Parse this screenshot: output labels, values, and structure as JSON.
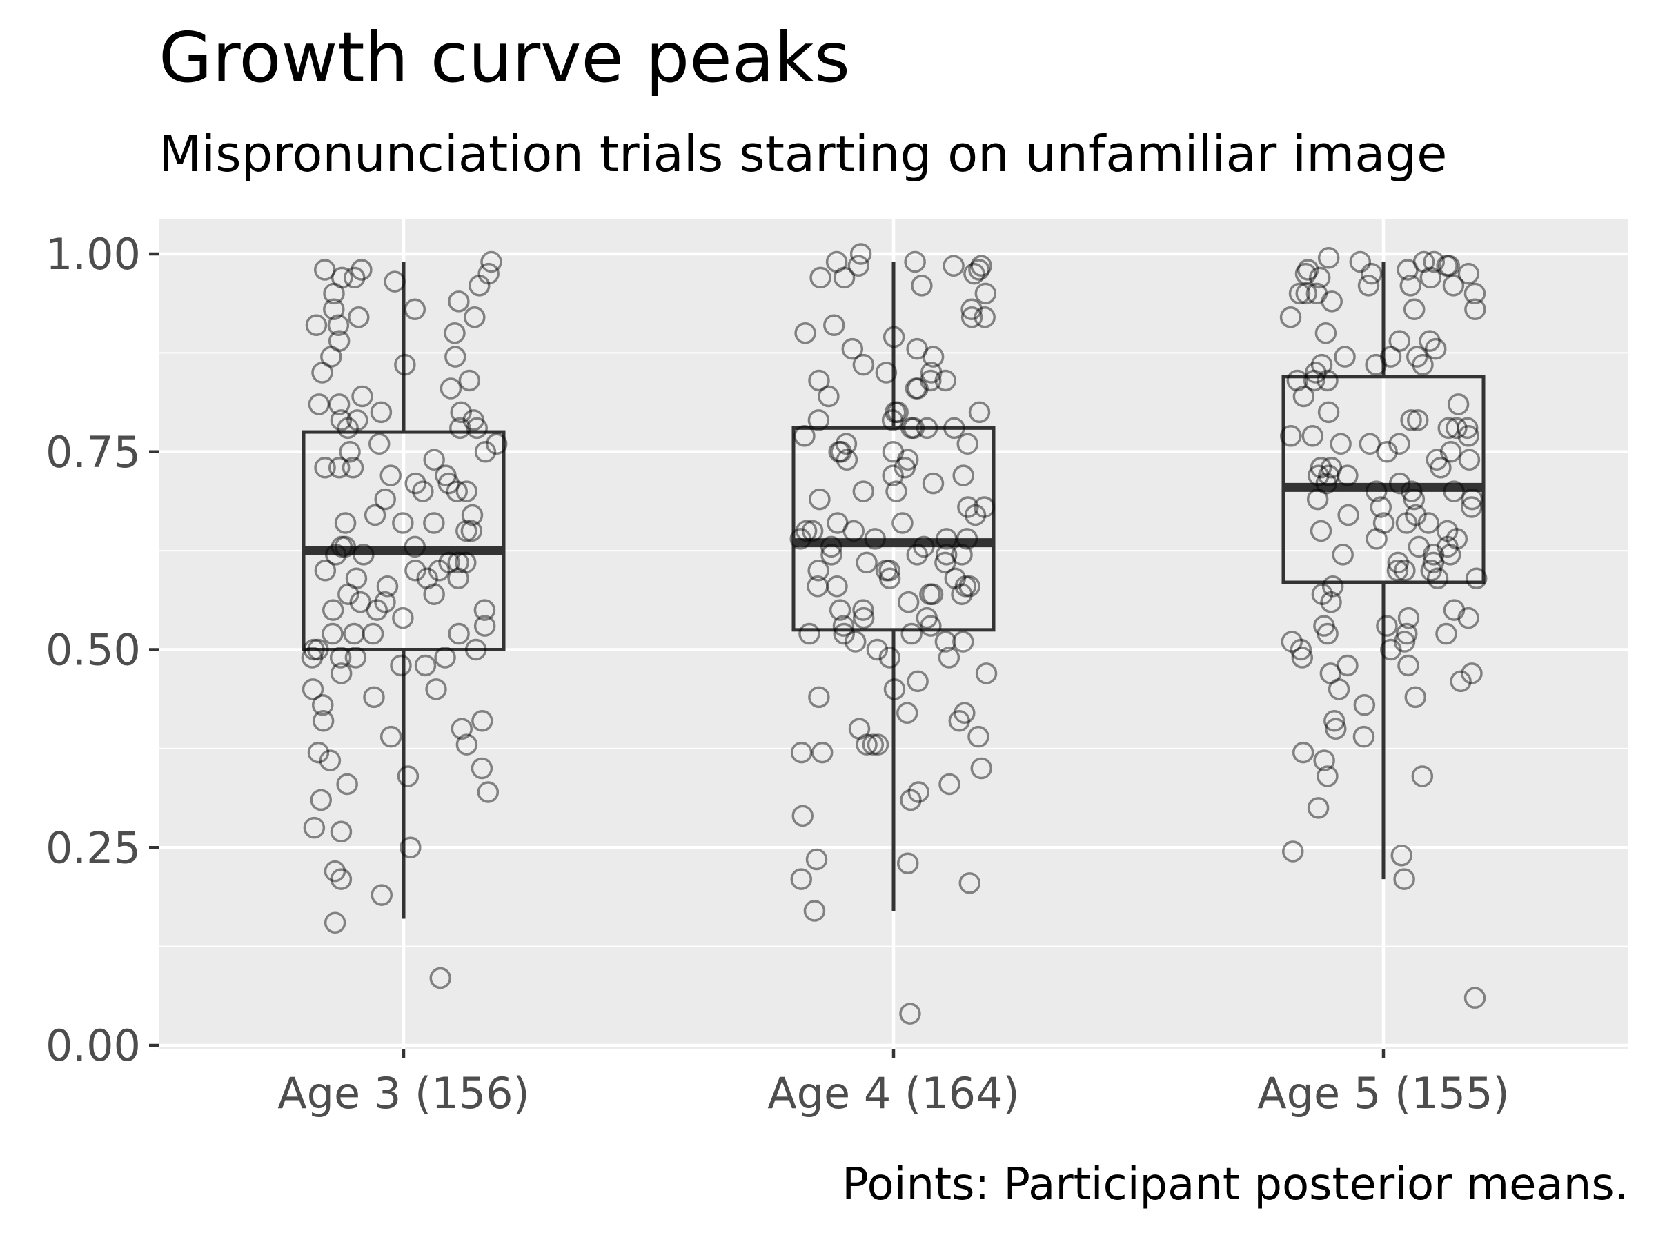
{
  "chart_data": {
    "type": "box",
    "title": "Growth curve peaks",
    "subtitle": "Mispronunciation trials starting on unfamiliar image",
    "caption": "Points: Participant posterior means.",
    "xlabel": "",
    "ylabel": "",
    "ylim": [
      0,
      1
    ],
    "y_ticks": [
      "0.00",
      "0.25",
      "0.50",
      "0.75",
      "1.00"
    ],
    "y_tick_values": [
      0,
      0.25,
      0.5,
      0.75,
      1.0
    ],
    "categories": [
      "Age 3 (156)",
      "Age 4 (164)",
      "Age 5 (155)"
    ],
    "grid": true,
    "panel_color": "#ebebeb",
    "grid_color": "#ffffff",
    "box_color": "#333333",
    "point_color": "#000000",
    "point_opacity": 0.45,
    "boxes": [
      {
        "category": "Age 3 (156)",
        "whisker_low": 0.16,
        "q1": 0.5,
        "median": 0.625,
        "q3": 0.775,
        "whisker_high": 0.99
      },
      {
        "category": "Age 4 (164)",
        "whisker_low": 0.17,
        "q1": 0.525,
        "median": 0.635,
        "q3": 0.78,
        "whisker_high": 0.99
      },
      {
        "category": "Age 5 (155)",
        "whisker_low": 0.21,
        "q1": 0.585,
        "median": 0.705,
        "q3": 0.845,
        "whisker_high": 0.99
      }
    ],
    "points": [
      {
        "category": "Age 3 (156)",
        "values": [
          0.98,
          0.98,
          0.97,
          0.92,
          0.91,
          0.91,
          0.89,
          0.86,
          0.84,
          0.81,
          0.8,
          0.79,
          0.76,
          0.75,
          0.73,
          0.72,
          0.71,
          0.7,
          0.67,
          0.66,
          0.63,
          0.62,
          0.58,
          0.57,
          0.56,
          0.55,
          0.52,
          0.5,
          0.49,
          0.45,
          0.44,
          0.41,
          0.4,
          0.33,
          0.25,
          0.155,
          0.085,
          0.96,
          0.95,
          0.87,
          0.82,
          0.8,
          0.79,
          0.78,
          0.74,
          0.73,
          0.7,
          0.69,
          0.66,
          0.65,
          0.61,
          0.6,
          0.59,
          0.56,
          0.55,
          0.54,
          0.5,
          0.49,
          0.45,
          0.43,
          0.41,
          0.37,
          0.36,
          0.34,
          0.975,
          0.93,
          0.9,
          0.81,
          0.79,
          0.78,
          0.73,
          0.7,
          0.66,
          0.65,
          0.63,
          0.61,
          0.6,
          0.59,
          0.57,
          0.52,
          0.52,
          0.49,
          0.48,
          0.39,
          0.38,
          0.35,
          0.32,
          0.31,
          0.275,
          0.27,
          0.99,
          0.97,
          0.965,
          0.94,
          0.93,
          0.92,
          0.87,
          0.85,
          0.83,
          0.78,
          0.76,
          0.75,
          0.72,
          0.71,
          0.67,
          0.63,
          0.62,
          0.61,
          0.6,
          0.59,
          0.55,
          0.53,
          0.52,
          0.5,
          0.49,
          0.48,
          0.47,
          0.22,
          0.21,
          0.19
        ]
      },
      {
        "category": "Age 4 (164)",
        "values": [
          1.0,
          0.98,
          0.975,
          0.97,
          0.86,
          0.84,
          0.83,
          0.8,
          0.79,
          0.78,
          0.76,
          0.72,
          0.7,
          0.68,
          0.65,
          0.64,
          0.62,
          0.61,
          0.6,
          0.59,
          0.58,
          0.57,
          0.55,
          0.52,
          0.51,
          0.47,
          0.46,
          0.45,
          0.44,
          0.42,
          0.4,
          0.38,
          0.37,
          0.32,
          0.31,
          0.29,
          0.205,
          0.04,
          0.985,
          0.985,
          0.97,
          0.92,
          0.91,
          0.87,
          0.84,
          0.8,
          0.78,
          0.78,
          0.75,
          0.74,
          0.68,
          0.66,
          0.64,
          0.63,
          0.62,
          0.61,
          0.6,
          0.58,
          0.57,
          0.56,
          0.54,
          0.53,
          0.52,
          0.51,
          0.49,
          0.38,
          0.35,
          0.235,
          0.23,
          0.17,
          0.99,
          0.985,
          0.96,
          0.95,
          0.93,
          0.92,
          0.9,
          0.88,
          0.85,
          0.84,
          0.83,
          0.8,
          0.79,
          0.78,
          0.76,
          0.75,
          0.74,
          0.73,
          0.72,
          0.71,
          0.69,
          0.67,
          0.65,
          0.64,
          0.63,
          0.62,
          0.6,
          0.58,
          0.57,
          0.55,
          0.54,
          0.53,
          0.52,
          0.51,
          0.5,
          0.49,
          0.42,
          0.41,
          0.39,
          0.38,
          0.37,
          0.33,
          0.21,
          0.99,
          0.895,
          0.88,
          0.85,
          0.82,
          0.77,
          0.75,
          0.7,
          0.66,
          0.65,
          0.64,
          0.62,
          0.59,
          0.58
        ]
      },
      {
        "category": "Age 5 (155)",
        "values": [
          0.99,
          0.985,
          0.98,
          0.975,
          0.96,
          0.95,
          0.95,
          0.87,
          0.85,
          0.8,
          0.79,
          0.76,
          0.72,
          0.71,
          0.69,
          0.65,
          0.63,
          0.62,
          0.6,
          0.59,
          0.52,
          0.24,
          0.245,
          0.06,
          0.97,
          0.96,
          0.95,
          0.93,
          0.9,
          0.89,
          0.87,
          0.86,
          0.84,
          0.82,
          0.79,
          0.78,
          0.77,
          0.76,
          0.75,
          0.73,
          0.71,
          0.7,
          0.68,
          0.66,
          0.64,
          0.63,
          0.6,
          0.59,
          0.58,
          0.54,
          0.53,
          0.52,
          0.51,
          0.5,
          0.48,
          0.47,
          0.46,
          0.3,
          0.99,
          0.98,
          0.975,
          0.96,
          0.95,
          0.94,
          0.92,
          0.89,
          0.86,
          0.84,
          0.81,
          0.78,
          0.77,
          0.74,
          0.73,
          0.72,
          0.7,
          0.69,
          0.68,
          0.67,
          0.66,
          0.65,
          0.64,
          0.62,
          0.61,
          0.56,
          0.54,
          0.53,
          0.52,
          0.49,
          0.47,
          0.45,
          0.41,
          0.34,
          0.21,
          0.995,
          0.99,
          0.985,
          0.975,
          0.97,
          0.93,
          0.88,
          0.87,
          0.86,
          0.84,
          0.78,
          0.77,
          0.76,
          0.75,
          0.74,
          0.73,
          0.72,
          0.7,
          0.69,
          0.67,
          0.66,
          0.62,
          0.61,
          0.6,
          0.57,
          0.55,
          0.51,
          0.5,
          0.48,
          0.44,
          0.43,
          0.4,
          0.39,
          0.37,
          0.36,
          0.34
        ]
      }
    ]
  }
}
